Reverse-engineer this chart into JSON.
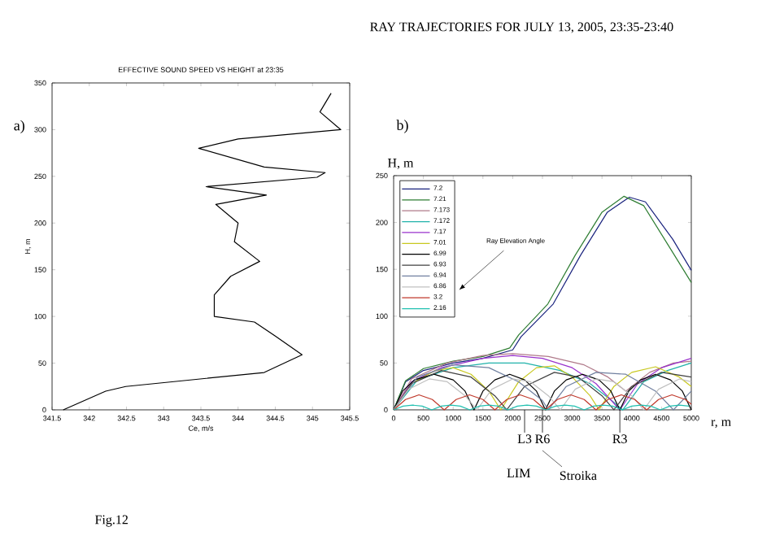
{
  "chart_data": [
    {
      "type": "line",
      "title": "EFFECTIVE SOUND SPEED VS HEIGHT at 23:35",
      "xlabel": "Ce, m/s",
      "ylabel": "H, m",
      "xlim": [
        341.5,
        345.5
      ],
      "xticks": [
        341.5,
        342,
        342.5,
        343,
        343.5,
        344,
        344.5,
        345,
        345.5
      ],
      "ylim": [
        0,
        350
      ],
      "yticks": [
        0,
        50,
        100,
        150,
        200,
        250,
        300,
        350
      ],
      "annotations": [
        "a)",
        "Fig.12"
      ],
      "series": [
        {
          "color": "#000000",
          "x": [
            341.65,
            342.22,
            342.49,
            344.35,
            344.86,
            344.5,
            344.22,
            343.68,
            343.68,
            343.9,
            344.29,
            343.95,
            344.0,
            343.7,
            344.38,
            343.57,
            345.06,
            345.17,
            344.35,
            343.47,
            344.0,
            345.38,
            345.1,
            345.25
          ],
          "values": [
            0,
            20,
            25,
            40,
            59,
            79,
            94,
            100,
            123,
            143,
            159,
            180,
            200,
            220,
            230,
            239,
            249,
            254,
            260,
            280,
            290,
            300,
            319,
            339
          ]
        }
      ]
    },
    {
      "type": "line",
      "title": "RAY TRAJECTORIES FOR JULY 13, 2005, 23:35-23:40",
      "xlabel": "r, m",
      "ylabel": "H, m",
      "xlim": [
        0,
        5000
      ],
      "xticks": [
        0,
        500,
        1000,
        1500,
        2000,
        2500,
        3000,
        3500,
        4000,
        4500,
        5000
      ],
      "ylim": [
        0,
        250
      ],
      "yticks": [
        0,
        50,
        100,
        150,
        200,
        250
      ],
      "legend": "top left",
      "annotations": [
        "b)",
        "Ray Elevation Angle",
        "LIM",
        "Stroika"
      ],
      "ref_lines": [
        {
          "axis": "x",
          "value": 2200,
          "label": "L3"
        },
        {
          "axis": "x",
          "value": 2500,
          "label": "R6"
        },
        {
          "axis": "x",
          "value": 3800,
          "label": "R3"
        }
      ],
      "series": [
        {
          "name": "7.2",
          "color": "#1a237e",
          "x": [
            0,
            200,
            500,
            1000,
            1500,
            2000,
            2140,
            2680,
            3140,
            3590,
            3960,
            4230,
            4690,
            5000
          ],
          "values": [
            0,
            30,
            42,
            50,
            55,
            64,
            78,
            113,
            165,
            211,
            227,
            222,
            182,
            149
          ]
        },
        {
          "name": "7.21",
          "color": "#2e7d32",
          "x": [
            0,
            200,
            500,
            1000,
            1500,
            1950,
            2100,
            2590,
            3050,
            3500,
            3870,
            4200,
            4650,
            5000
          ],
          "values": [
            0,
            31,
            44,
            52,
            57,
            66,
            80,
            113,
            165,
            211,
            228,
            218,
            172,
            136
          ]
        },
        {
          "name": "7.173",
          "color": "#b07a8a",
          "x": [
            0,
            300,
            900,
            1500,
            2000,
            2600,
            3200,
            3600,
            3900,
            4300,
            4700,
            5000
          ],
          "values": [
            0,
            33,
            50,
            58,
            60,
            57,
            48,
            35,
            20,
            40,
            50,
            52
          ]
        },
        {
          "name": "7.172",
          "color": "#20b2aa",
          "x": [
            0,
            400,
            1000,
            1600,
            2200,
            2800,
            3300,
            3700,
            3850,
            4200,
            4600,
            5000
          ],
          "values": [
            0,
            32,
            45,
            50,
            50,
            42,
            28,
            8,
            0,
            30,
            42,
            50
          ]
        },
        {
          "name": "7.17",
          "color": "#9932cc",
          "x": [
            0,
            300,
            800,
            1500,
            2000,
            2500,
            3000,
            3400,
            3800,
            4100,
            4500,
            5000
          ],
          "values": [
            0,
            30,
            45,
            55,
            58,
            55,
            45,
            28,
            0,
            28,
            45,
            55
          ]
        },
        {
          "name": "7.01",
          "color": "#c8c820",
          "x": [
            0,
            300,
            700,
            1000,
            1300,
            1600,
            1800,
            2100,
            2400,
            2700,
            3000,
            3300,
            3450,
            3700,
            4000,
            4400,
            4800,
            5000
          ],
          "values": [
            0,
            28,
            42,
            45,
            38,
            20,
            0,
            30,
            45,
            47,
            35,
            15,
            0,
            25,
            40,
            46,
            35,
            25
          ]
        },
        {
          "name": "6.99",
          "color": "#000000",
          "x": [
            0,
            150,
            350,
            675,
            1000,
            1200,
            1350,
            1500,
            1700,
            1950,
            2200,
            2400,
            2550,
            2700,
            2900,
            3175,
            3450,
            3650,
            3800,
            3950,
            4150,
            4400,
            4650,
            4850,
            5000
          ],
          "values": [
            0,
            20,
            32,
            38,
            32,
            20,
            0,
            20,
            32,
            38,
            32,
            20,
            0,
            20,
            32,
            38,
            32,
            20,
            0,
            20,
            32,
            38,
            32,
            20,
            0
          ]
        },
        {
          "name": "6.93",
          "color": "#404040",
          "x": [
            0,
            300,
            800,
            1300,
            1700,
            1900,
            2200,
            2700,
            3100,
            3500,
            3700,
            4000,
            4500,
            5000
          ],
          "values": [
            0,
            28,
            42,
            35,
            15,
            0,
            25,
            40,
            35,
            15,
            0,
            25,
            40,
            35
          ]
        },
        {
          "name": "6.94",
          "color": "#7080a0",
          "x": [
            0,
            400,
            1000,
            1600,
            2100,
            2500,
            2600,
            2900,
            3400,
            3900,
            4400,
            4700,
            5000
          ],
          "values": [
            0,
            35,
            48,
            45,
            30,
            10,
            0,
            25,
            40,
            38,
            20,
            0,
            20
          ]
        },
        {
          "name": "6.86",
          "color": "#c0c0c0",
          "x": [
            0,
            250,
            600,
            900,
            1200,
            1400,
            1650,
            2000,
            2300,
            2600,
            2800,
            3050,
            3400,
            3700,
            4000,
            4200,
            4450,
            4800,
            5000
          ],
          "values": [
            0,
            22,
            33,
            30,
            15,
            0,
            22,
            33,
            30,
            15,
            0,
            22,
            33,
            30,
            15,
            0,
            22,
            33,
            30
          ]
        },
        {
          "name": "3.2",
          "color": "#c0392b",
          "x": [
            0,
            200,
            425,
            650,
            850,
            1050,
            1275,
            1500,
            1700,
            1900,
            2125,
            2350,
            2550,
            2750,
            2975,
            3200,
            3400,
            3600,
            3825,
            4050,
            4250,
            4450,
            4675,
            4900,
            5000
          ],
          "values": [
            0,
            11,
            16,
            11,
            0,
            11,
            16,
            11,
            0,
            11,
            16,
            11,
            0,
            11,
            16,
            11,
            0,
            11,
            16,
            11,
            0,
            11,
            16,
            11,
            6
          ]
        },
        {
          "name": "2.16",
          "color": "#20c0b0",
          "x": [
            0,
            160,
            320,
            480,
            640,
            800,
            960,
            1120,
            1280,
            1440,
            1600,
            1760,
            1920,
            2080,
            2240,
            2400,
            2560,
            2720,
            2880,
            3040,
            3200,
            3360,
            3520,
            3680,
            3840,
            4000,
            4160,
            4320,
            4480,
            4640,
            4800,
            4960
          ],
          "values": [
            0,
            4,
            5,
            4,
            0,
            4,
            5,
            4,
            0,
            4,
            5,
            4,
            0,
            4,
            5,
            4,
            0,
            4,
            5,
            4,
            0,
            4,
            5,
            4,
            0,
            4,
            5,
            4,
            0,
            4,
            5,
            4
          ]
        }
      ]
    }
  ]
}
